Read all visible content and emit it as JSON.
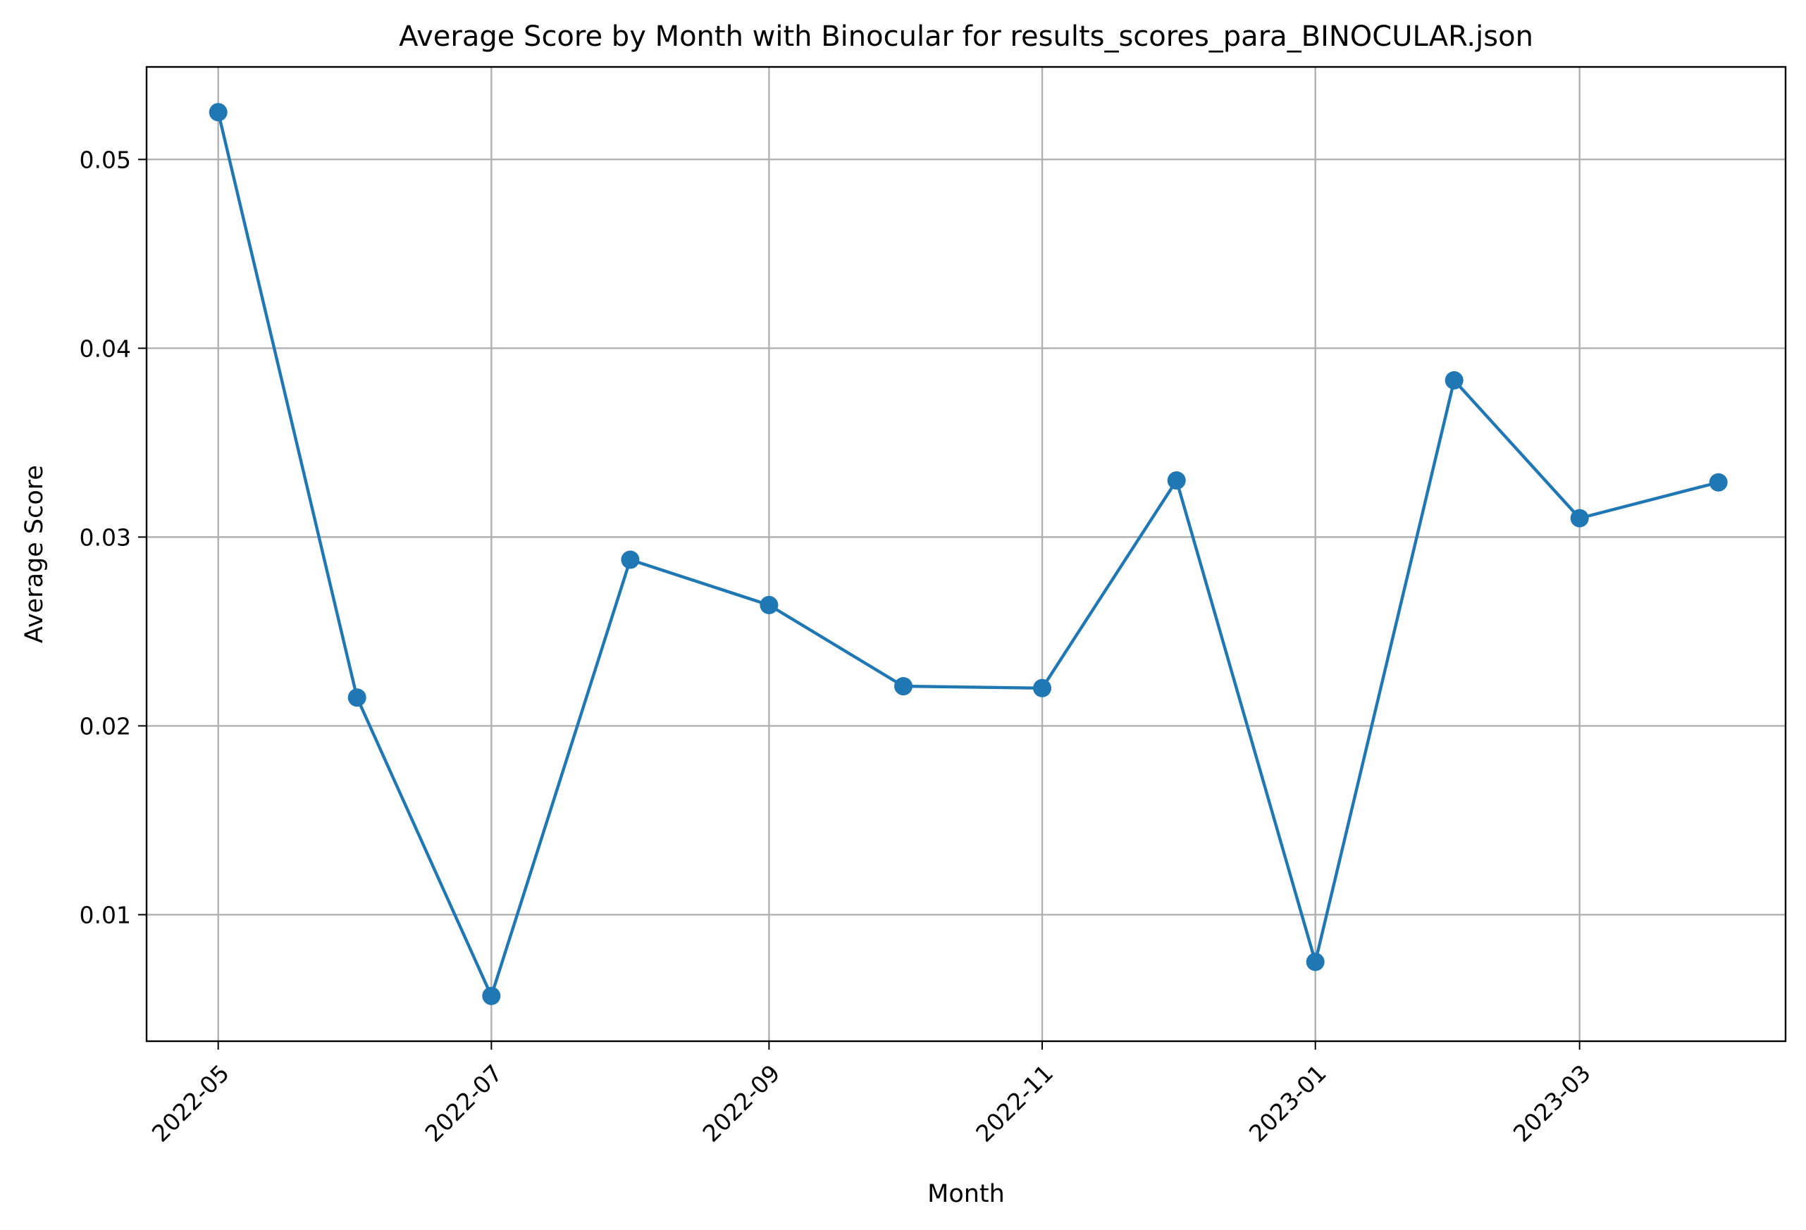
{
  "chart_data": {
    "type": "line",
    "title": "Average Score by Month with Binocular for results_scores_para_BINOCULAR.json",
    "xlabel": "Month",
    "ylabel": "Average Score",
    "x": [
      "2022-05",
      "2022-06",
      "2022-07",
      "2022-08",
      "2022-09",
      "2022-10",
      "2022-11",
      "2022-12",
      "2023-01",
      "2023-02",
      "2023-03",
      "2023-04"
    ],
    "series": [
      {
        "values": [
          0.0525,
          0.0215,
          0.0057,
          0.0288,
          0.0264,
          0.0221,
          0.022,
          0.033,
          0.0075,
          0.0383,
          0.031,
          0.0329
        ],
        "color": "#1f77b4",
        "marker": "circle"
      }
    ],
    "xticks": [
      "2022-05",
      "2022-07",
      "2022-09",
      "2022-11",
      "2023-01",
      "2023-03"
    ],
    "yticks": [
      0.01,
      0.02,
      0.03,
      0.04,
      0.05
    ],
    "ytick_labels": [
      "0.01",
      "0.02",
      "0.03",
      "0.04",
      "0.05"
    ],
    "ylim": [
      0.0033,
      0.0549
    ],
    "xlim": [
      "2022-04-15",
      "2023-04-16"
    ],
    "grid": true,
    "legend": "none"
  }
}
